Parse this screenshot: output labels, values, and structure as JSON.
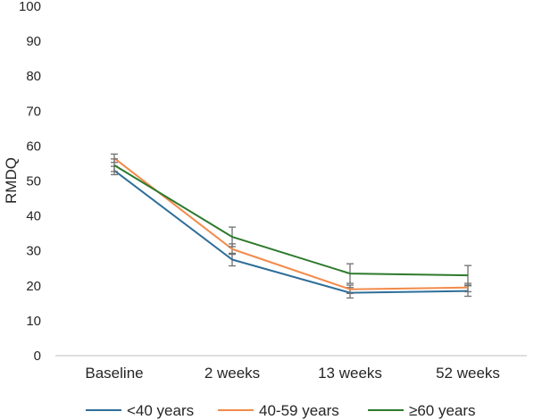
{
  "chart_data": {
    "type": "line",
    "categories": [
      "Baseline",
      "2 weeks",
      "13 weeks",
      "52 weeks"
    ],
    "ylabel": "RMDQ",
    "xlabel": "",
    "ylim": [
      0,
      100
    ],
    "yticks": [
      "0",
      "10",
      "20",
      "30",
      "40",
      "50",
      "60",
      "70",
      "80",
      "90",
      "100"
    ],
    "grid": false,
    "legend_position": "bottom",
    "series": [
      {
        "name": "<40 years",
        "color": "#2e6e99",
        "values": [
          53.0,
          27.5,
          18.0,
          18.5
        ],
        "error": [
          1.2,
          1.8,
          1.5,
          1.5
        ]
      },
      {
        "name": "40-59 years",
        "color": "#f28a4a",
        "values": [
          56.5,
          30.5,
          19.0,
          19.5
        ],
        "error": [
          1.2,
          1.5,
          1.2,
          1.2
        ]
      },
      {
        "name": "≥60 years",
        "color": "#2d7a2d",
        "values": [
          54.5,
          34.0,
          23.5,
          23.0
        ],
        "error": [
          1.8,
          2.8,
          2.8,
          2.8
        ]
      }
    ]
  }
}
